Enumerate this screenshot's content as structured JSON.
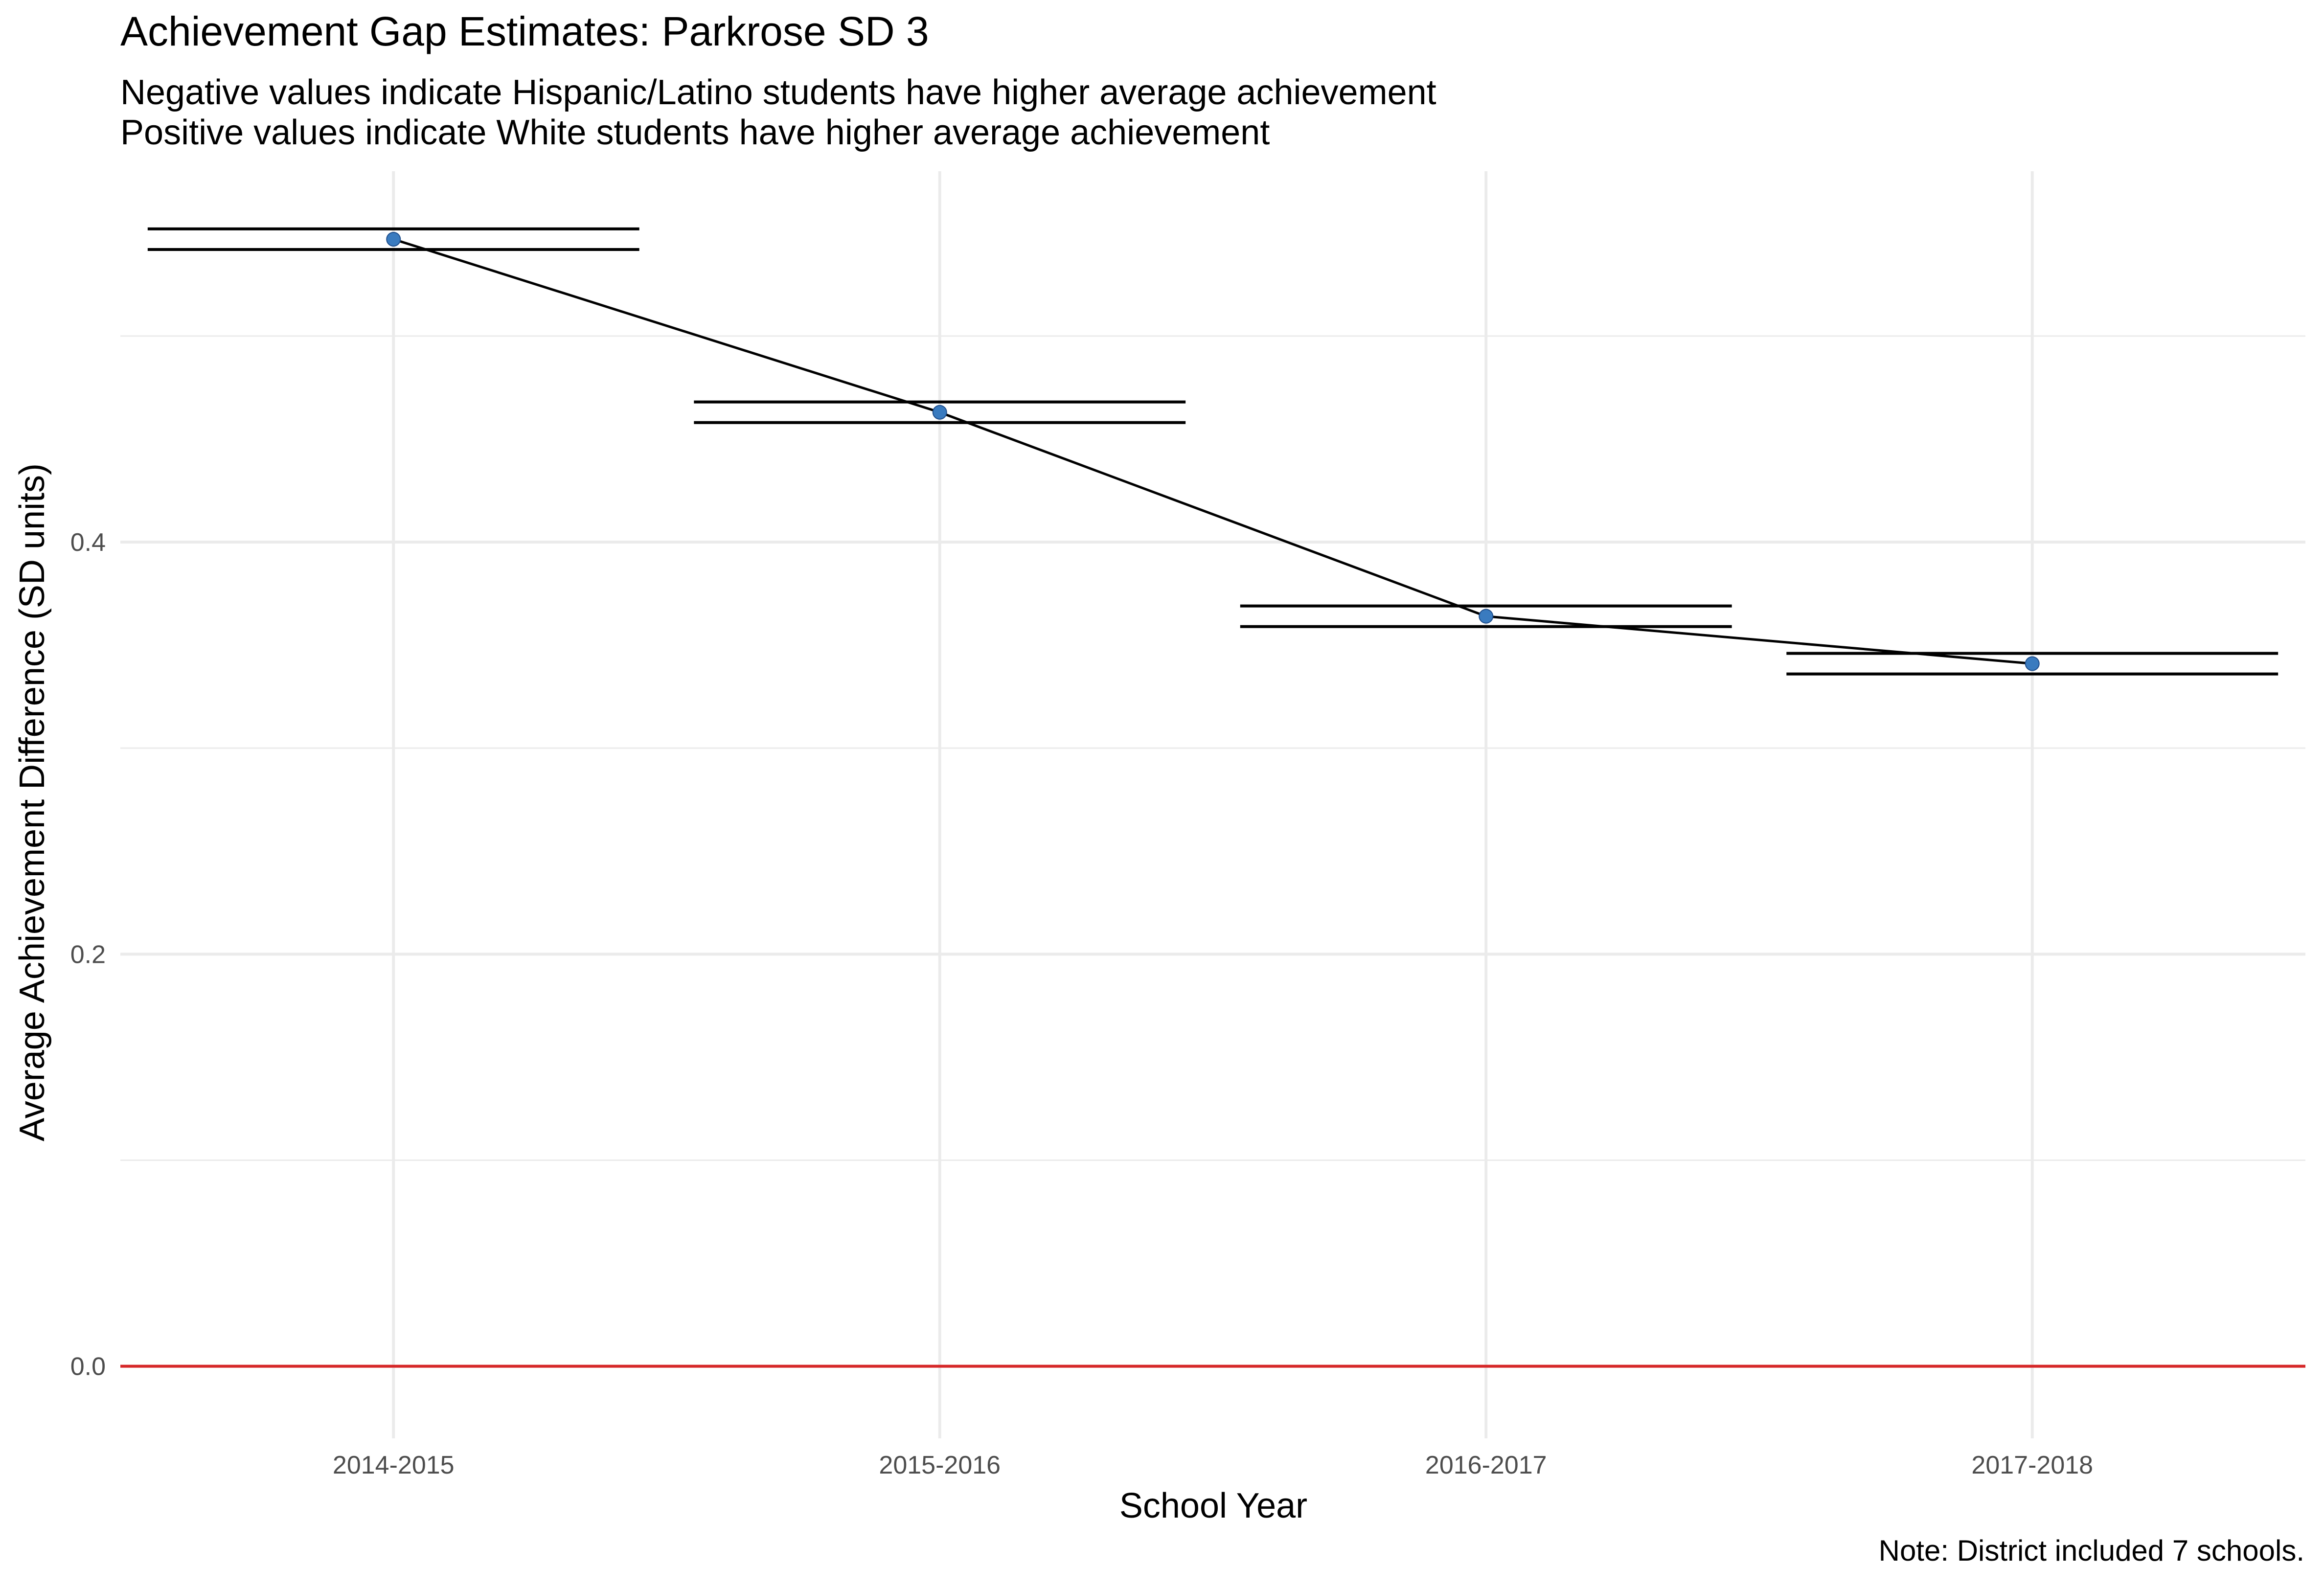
{
  "chart_data": {
    "type": "line",
    "title": "Achievement Gap Estimates: Parkrose SD 3",
    "subtitle_lines": [
      "Negative values indicate Hispanic/Latino students have higher average achievement",
      "Positive values indicate White students have higher average achievement"
    ],
    "caption": "Note: District included 7 schools.",
    "xlabel": "School Year",
    "ylabel": "Average Achievement Difference (SD units)",
    "categories": [
      "2014-2015",
      "2015-2016",
      "2016-2017",
      "2017-2018"
    ],
    "series": [
      {
        "values": [
          0.547,
          0.463,
          0.364,
          0.341
        ],
        "error_low": [
          0.542,
          0.458,
          0.359,
          0.336
        ],
        "error_high": [
          0.552,
          0.468,
          0.369,
          0.346
        ]
      }
    ],
    "y_ticks": [
      0.0,
      0.2,
      0.4
    ],
    "y_tick_labels": [
      "0.0",
      "0.2",
      "0.4"
    ],
    "ylim": [
      -0.035,
      0.58
    ],
    "reference_line": 0.0,
    "grid": true,
    "colors": {
      "point": "#3a7bbf",
      "line": "#000000",
      "reference": "#d62728",
      "grid": "#ebebeb"
    }
  }
}
